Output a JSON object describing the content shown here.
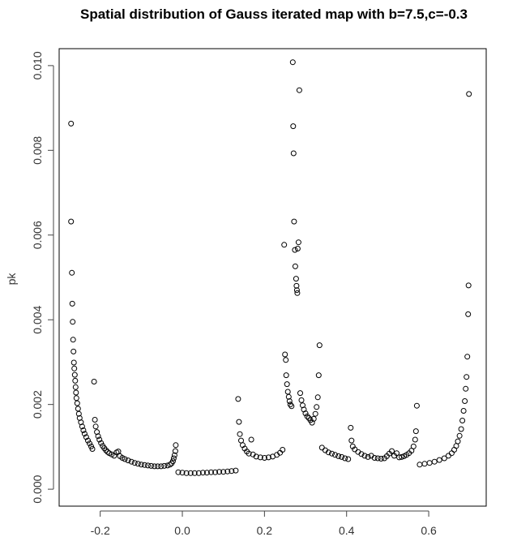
{
  "chart_data": {
    "type": "scatter",
    "title": "Spatial distribution of Gauss iterated map with b=7.5,c=-0.3",
    "xlabel": "",
    "ylabel": "pk",
    "xlim": [
      -0.3,
      0.74
    ],
    "ylim": [
      -0.0004,
      0.0104
    ],
    "x_ticks": [
      -0.2,
      0.0,
      0.2,
      0.4,
      0.6
    ],
    "x_tick_labels": [
      "-0.2",
      "0.0",
      "0.2",
      "0.4",
      "0.6"
    ],
    "y_ticks": [
      0.0,
      0.002,
      0.004,
      0.006,
      0.008,
      0.01
    ],
    "y_tick_labels": [
      "0.000",
      "0.002",
      "0.004",
      "0.006",
      "0.008",
      "0.010"
    ],
    "grid": false,
    "marker": "open-circle",
    "series": [
      {
        "points": [
          [
            -0.271,
            0.00863
          ],
          [
            -0.271,
            0.00632
          ],
          [
            -0.269,
            0.00511
          ],
          [
            -0.268,
            0.00438
          ],
          [
            -0.267,
            0.00395
          ],
          [
            -0.266,
            0.00353
          ],
          [
            -0.265,
            0.00325
          ],
          [
            -0.264,
            0.00299
          ],
          [
            -0.263,
            0.00285
          ],
          [
            -0.262,
            0.0027
          ],
          [
            -0.261,
            0.00256
          ],
          [
            -0.26,
            0.00241
          ],
          [
            -0.259,
            0.00228
          ],
          [
            -0.258,
            0.00215
          ],
          [
            -0.256,
            0.00203
          ],
          [
            -0.254,
            0.0019
          ],
          [
            -0.252,
            0.00178
          ],
          [
            -0.25,
            0.00168
          ],
          [
            -0.247,
            0.00158
          ],
          [
            -0.244,
            0.00148
          ],
          [
            -0.241,
            0.00139
          ],
          [
            -0.238,
            0.00131
          ],
          [
            -0.234,
            0.00123
          ],
          [
            -0.23,
            0.00115
          ],
          [
            -0.226,
            0.00108
          ],
          [
            -0.222,
            0.00101
          ],
          [
            -0.219,
            0.00095
          ],
          [
            -0.215,
            0.00254
          ],
          [
            -0.213,
            0.00164
          ],
          [
            -0.211,
            0.00148
          ],
          [
            -0.208,
            0.00135
          ],
          [
            -0.205,
            0.00125
          ],
          [
            -0.202,
            0.00117
          ],
          [
            -0.198,
            0.00109
          ],
          [
            -0.194,
            0.00102
          ],
          [
            -0.19,
            0.00097
          ],
          [
            -0.186,
            0.00092
          ],
          [
            -0.182,
            0.00088
          ],
          [
            -0.178,
            0.00085
          ],
          [
            -0.172,
            0.00082
          ],
          [
            -0.166,
            0.00079
          ],
          [
            -0.16,
            0.00087
          ],
          [
            -0.156,
            0.00089
          ],
          [
            -0.152,
            0.00078
          ],
          [
            -0.146,
            0.00074
          ],
          [
            -0.14,
            0.00071
          ],
          [
            -0.132,
            0.00068
          ],
          [
            -0.124,
            0.00065
          ],
          [
            -0.116,
            0.00062
          ],
          [
            -0.108,
            0.0006
          ],
          [
            -0.1,
            0.00058
          ],
          [
            -0.092,
            0.00057
          ],
          [
            -0.084,
            0.00056
          ],
          [
            -0.076,
            0.00055
          ],
          [
            -0.068,
            0.00054
          ],
          [
            -0.06,
            0.00054
          ],
          [
            -0.052,
            0.00054
          ],
          [
            -0.044,
            0.00055
          ],
          [
            -0.036,
            0.00056
          ],
          [
            -0.03,
            0.00058
          ],
          [
            -0.026,
            0.00061
          ],
          [
            -0.023,
            0.00066
          ],
          [
            -0.021,
            0.00073
          ],
          [
            -0.019,
            0.0008
          ],
          [
            -0.017,
            0.0009
          ],
          [
            -0.016,
            0.00104
          ],
          [
            -0.01,
            0.0004
          ],
          [
            0.0,
            0.00039
          ],
          [
            0.01,
            0.00038
          ],
          [
            0.02,
            0.00038
          ],
          [
            0.03,
            0.00038
          ],
          [
            0.04,
            0.00038
          ],
          [
            0.05,
            0.00039
          ],
          [
            0.06,
            0.00039
          ],
          [
            0.07,
            0.0004
          ],
          [
            0.08,
            0.0004
          ],
          [
            0.09,
            0.00041
          ],
          [
            0.1,
            0.00041
          ],
          [
            0.11,
            0.00042
          ],
          [
            0.12,
            0.00043
          ],
          [
            0.13,
            0.00044
          ],
          [
            0.136,
            0.00213
          ],
          [
            0.138,
            0.00159
          ],
          [
            0.14,
            0.0013
          ],
          [
            0.143,
            0.00115
          ],
          [
            0.147,
            0.00104
          ],
          [
            0.152,
            0.00096
          ],
          [
            0.157,
            0.00089
          ],
          [
            0.162,
            0.00084
          ],
          [
            0.168,
            0.00117
          ],
          [
            0.172,
            0.00082
          ],
          [
            0.18,
            0.00077
          ],
          [
            0.19,
            0.00075
          ],
          [
            0.2,
            0.00074
          ],
          [
            0.21,
            0.00075
          ],
          [
            0.22,
            0.00077
          ],
          [
            0.23,
            0.00081
          ],
          [
            0.238,
            0.00086
          ],
          [
            0.244,
            0.00093
          ],
          [
            0.248,
            0.00577
          ],
          [
            0.25,
            0.00318
          ],
          [
            0.252,
            0.00305
          ],
          [
            0.253,
            0.00269
          ],
          [
            0.255,
            0.00248
          ],
          [
            0.257,
            0.0023
          ],
          [
            0.259,
            0.00218
          ],
          [
            0.261,
            0.00208
          ],
          [
            0.263,
            0.002
          ],
          [
            0.266,
            0.00196
          ],
          [
            0.269,
            0.01008
          ],
          [
            0.27,
            0.00857
          ],
          [
            0.271,
            0.00793
          ],
          [
            0.272,
            0.00632
          ],
          [
            0.274,
            0.00565
          ],
          [
            0.275,
            0.00526
          ],
          [
            0.277,
            0.00497
          ],
          [
            0.278,
            0.0048
          ],
          [
            0.279,
            0.0047
          ],
          [
            0.28,
            0.00463
          ],
          [
            0.281,
            0.00568
          ],
          [
            0.283,
            0.00583
          ],
          [
            0.285,
            0.00942
          ],
          [
            0.287,
            0.00227
          ],
          [
            0.29,
            0.0021
          ],
          [
            0.293,
            0.00198
          ],
          [
            0.296,
            0.00188
          ],
          [
            0.3,
            0.00179
          ],
          [
            0.304,
            0.00172
          ],
          [
            0.308,
            0.00168
          ],
          [
            0.312,
            0.00163
          ],
          [
            0.316,
            0.00157
          ],
          [
            0.32,
            0.00166
          ],
          [
            0.324,
            0.00178
          ],
          [
            0.327,
            0.00194
          ],
          [
            0.33,
            0.00217
          ],
          [
            0.332,
            0.00269
          ],
          [
            0.334,
            0.0034
          ],
          [
            0.34,
            0.00098
          ],
          [
            0.348,
            0.00092
          ],
          [
            0.356,
            0.00087
          ],
          [
            0.364,
            0.00084
          ],
          [
            0.372,
            0.00081
          ],
          [
            0.38,
            0.00078
          ],
          [
            0.388,
            0.00076
          ],
          [
            0.396,
            0.00073
          ],
          [
            0.404,
            0.00071
          ],
          [
            0.41,
            0.00145
          ],
          [
            0.412,
            0.00115
          ],
          [
            0.415,
            0.00101
          ],
          [
            0.42,
            0.00094
          ],
          [
            0.428,
            0.00088
          ],
          [
            0.436,
            0.00083
          ],
          [
            0.444,
            0.00079
          ],
          [
            0.452,
            0.00076
          ],
          [
            0.46,
            0.00079
          ],
          [
            0.468,
            0.00074
          ],
          [
            0.476,
            0.00073
          ],
          [
            0.484,
            0.00072
          ],
          [
            0.492,
            0.00073
          ],
          [
            0.498,
            0.00078
          ],
          [
            0.504,
            0.00084
          ],
          [
            0.51,
            0.0009
          ],
          [
            0.516,
            0.00079
          ],
          [
            0.522,
            0.00085
          ],
          [
            0.528,
            0.00075
          ],
          [
            0.534,
            0.00076
          ],
          [
            0.54,
            0.00078
          ],
          [
            0.546,
            0.00081
          ],
          [
            0.552,
            0.00085
          ],
          [
            0.558,
            0.00091
          ],
          [
            0.563,
            0.00101
          ],
          [
            0.567,
            0.00117
          ],
          [
            0.569,
            0.00137
          ],
          [
            0.571,
            0.00197
          ],
          [
            0.578,
            0.00058
          ],
          [
            0.59,
            0.0006
          ],
          [
            0.602,
            0.00062
          ],
          [
            0.614,
            0.00065
          ],
          [
            0.626,
            0.00069
          ],
          [
            0.638,
            0.00073
          ],
          [
            0.648,
            0.00079
          ],
          [
            0.656,
            0.00085
          ],
          [
            0.662,
            0.00093
          ],
          [
            0.667,
            0.00102
          ],
          [
            0.671,
            0.00113
          ],
          [
            0.675,
            0.00126
          ],
          [
            0.679,
            0.00142
          ],
          [
            0.682,
            0.00162
          ],
          [
            0.685,
            0.00185
          ],
          [
            0.688,
            0.00208
          ],
          [
            0.69,
            0.00237
          ],
          [
            0.692,
            0.00265
          ],
          [
            0.694,
            0.00313
          ],
          [
            0.696,
            0.00413
          ],
          [
            0.697,
            0.00481
          ],
          [
            0.698,
            0.00933
          ]
        ]
      }
    ]
  }
}
